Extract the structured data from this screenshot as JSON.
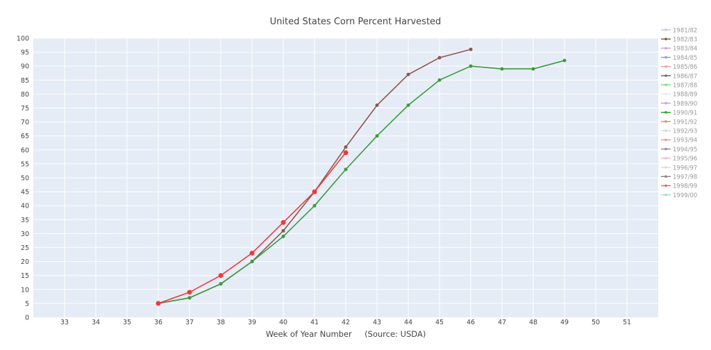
{
  "chart_data": {
    "type": "line",
    "title": "United States Corn Percent Harvested",
    "xlabel": "Week of Year Number     (Source: USDA)",
    "ylabel": "",
    "xlim": [
      32,
      52
    ],
    "ylim": [
      0,
      100
    ],
    "x_ticks": [
      33,
      34,
      35,
      36,
      37,
      38,
      39,
      40,
      41,
      42,
      43,
      44,
      45,
      46,
      47,
      48,
      49,
      50,
      51
    ],
    "y_ticks": [
      0,
      5,
      10,
      15,
      20,
      25,
      30,
      35,
      40,
      45,
      50,
      55,
      60,
      65,
      70,
      75,
      80,
      85,
      90,
      95,
      100
    ],
    "grid": true,
    "legend_position": "right",
    "colors": {
      "plot_bg": "#e5ecf6",
      "grid": "#ffffff",
      "text": "#444444",
      "title": "#444444"
    },
    "legend": [
      {
        "name": "1981/82",
        "color": "#c9c3e6"
      },
      {
        "name": "1982/83",
        "color": "#8c564b"
      },
      {
        "name": "1983/84",
        "color": "#d3a4bd"
      },
      {
        "name": "1984/85",
        "color": "#8fa3c7"
      },
      {
        "name": "1985/86",
        "color": "#f2a19a"
      },
      {
        "name": "1986/87",
        "color": "#6b6b6b"
      },
      {
        "name": "1987/88",
        "color": "#7fe07f"
      },
      {
        "name": "1988/89",
        "color": "#e6e6f0"
      },
      {
        "name": "1989/90",
        "color": "#c6a9c9"
      },
      {
        "name": "1990/91",
        "color": "#2ca02c"
      },
      {
        "name": "1991/92",
        "color": "#cf8f8f"
      },
      {
        "name": "1992/93",
        "color": "#d8d8d8"
      },
      {
        "name": "1993/94",
        "color": "#f29b9b"
      },
      {
        "name": "1994/95",
        "color": "#8a8fa8"
      },
      {
        "name": "1995/96",
        "color": "#f2b7c7"
      },
      {
        "name": "1996/97",
        "color": "#e7d6ea"
      },
      {
        "name": "1997/98",
        "color": "#8a8a8a"
      },
      {
        "name": "1998/99",
        "color": "#f06060"
      },
      {
        "name": "1999/00",
        "color": "#9be3be"
      }
    ],
    "series": [
      {
        "name": "1982/83",
        "color": "#8c564b",
        "x": [
          36,
          37,
          38,
          39,
          40,
          41,
          42,
          43,
          44,
          45,
          46
        ],
        "values": [
          5,
          7,
          12,
          20,
          31,
          45,
          61,
          76,
          87,
          93,
          96
        ],
        "marker_size": 2.5
      },
      {
        "name": "1990/91",
        "color": "#3d9a3d",
        "x": [
          36,
          37,
          38,
          39,
          40,
          41,
          42,
          43,
          44,
          45,
          46,
          47,
          48,
          49
        ],
        "values": [
          5,
          7,
          12,
          20,
          29,
          40,
          53,
          65,
          76,
          85,
          90,
          89,
          89,
          92
        ],
        "marker_size": 2.5
      },
      {
        "name": "1998/99",
        "color": "#f0393c",
        "x": [
          36,
          37,
          38,
          39,
          40,
          41,
          42
        ],
        "values": [
          5,
          9,
          15,
          23,
          34,
          45,
          59
        ],
        "marker_size": 3.5
      }
    ]
  }
}
